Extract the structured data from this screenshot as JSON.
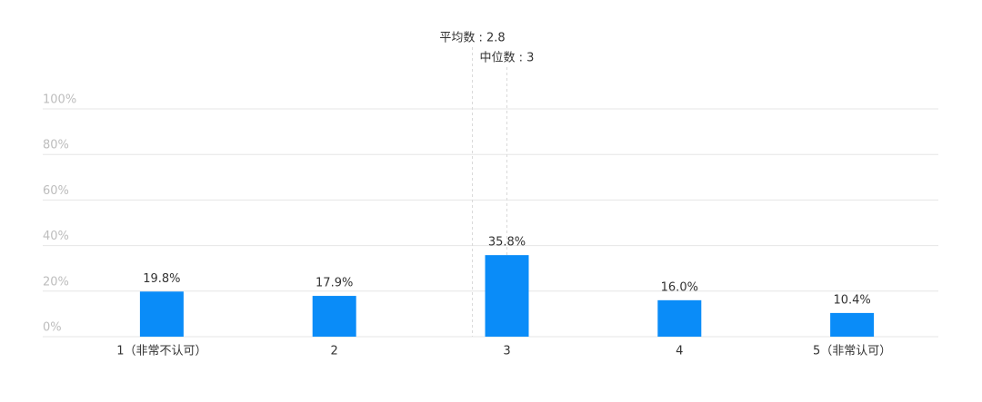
{
  "chart_data": {
    "type": "bar",
    "categories": [
      "1（非常不认可）",
      "2",
      "3",
      "4",
      "5（非常认可）"
    ],
    "values": [
      19.8,
      17.9,
      35.8,
      16.0,
      10.4
    ],
    "value_labels": [
      "19.8%",
      "17.9%",
      "35.8%",
      "16.0%",
      "10.4%"
    ],
    "color": "#0a8cf8",
    "ylim": [
      0,
      100
    ],
    "yticks": [
      {
        "value": 0,
        "label": "0%"
      },
      {
        "value": 20,
        "label": "20%"
      },
      {
        "value": 40,
        "label": "40%"
      },
      {
        "value": 60,
        "label": "60%"
      },
      {
        "value": 80,
        "label": "80%"
      },
      {
        "value": 100,
        "label": "100%"
      }
    ],
    "grid": true,
    "annotations": [
      {
        "label": "平均数 : 2.8",
        "x": 2.8
      },
      {
        "label": "中位数 : 3",
        "x": 3
      }
    ]
  }
}
